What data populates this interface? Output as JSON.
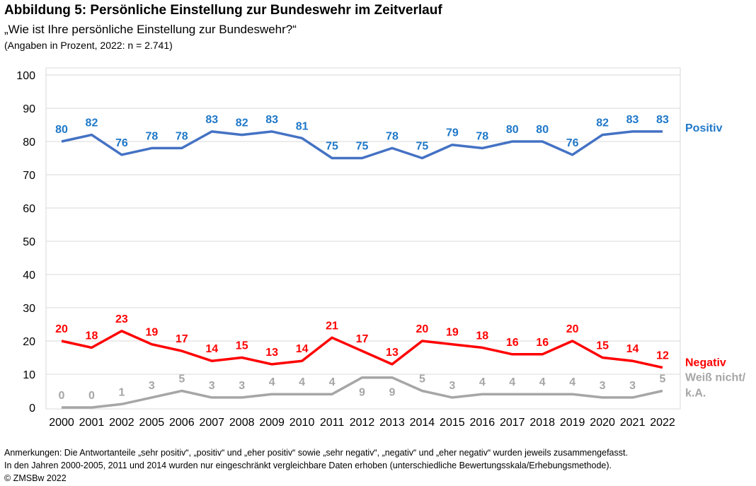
{
  "header": {
    "title": "Abbildung 5: Persönliche Einstellung zur Bundeswehr im Zeitverlauf",
    "subtitle": "„Wie ist Ihre persönliche Einstellung zur Bundeswehr?“",
    "note": "(Angaben in Prozent, 2022: n = 2.741)"
  },
  "footer": {
    "line1": "Anmerkungen: Die Antwortanteile „sehr positiv“, „positiv“ und „eher positiv“ sowie „sehr negativ“, „negativ“ und „eher negativ“ wurden jeweils zusammengefasst.",
    "line2": "In den Jahren 2000-2005, 2011 und 2014 wurden nur eingeschränkt vergleichbare Daten erhoben (unterschiedliche Bewertungsskala/Erhebungsmethode).",
    "line3": "© ZMSBw 2022"
  },
  "chart_data": {
    "type": "line",
    "categories": [
      "2000",
      "2001",
      "2002",
      "2005",
      "2006",
      "2007",
      "2008",
      "2009",
      "2010",
      "2011",
      "2012",
      "2013",
      "2014",
      "2015",
      "2016",
      "2017",
      "2018",
      "2019",
      "2020",
      "2021",
      "2022"
    ],
    "ylim": [
      0,
      100
    ],
    "yticks": [
      0,
      10,
      20,
      30,
      40,
      50,
      60,
      70,
      80,
      90,
      100
    ],
    "grid": true,
    "legend": "right, labels at line ends",
    "series": [
      {
        "name": "Positiv",
        "color": "#4472C4",
        "label_color": "#1F78C8",
        "values": [
          80,
          82,
          76,
          78,
          78,
          83,
          82,
          83,
          81,
          75,
          75,
          78,
          75,
          79,
          78,
          80,
          80,
          76,
          82,
          83,
          83
        ]
      },
      {
        "name": "Negativ",
        "color": "#FF0000",
        "label_color": "#FF0000",
        "values": [
          20,
          18,
          23,
          19,
          17,
          14,
          15,
          13,
          14,
          21,
          17,
          13,
          20,
          19,
          18,
          16,
          16,
          20,
          15,
          14,
          12
        ]
      },
      {
        "name": "Weiß nicht/ k.A.",
        "name_lines": [
          "Weiß nicht/",
          "k.A."
        ],
        "color": "#A6A6A6",
        "label_color": "#A6A6A6",
        "values": [
          0,
          0,
          1,
          3,
          5,
          3,
          3,
          4,
          4,
          4,
          9,
          9,
          5,
          3,
          4,
          4,
          4,
          4,
          3,
          3,
          5
        ]
      }
    ]
  }
}
